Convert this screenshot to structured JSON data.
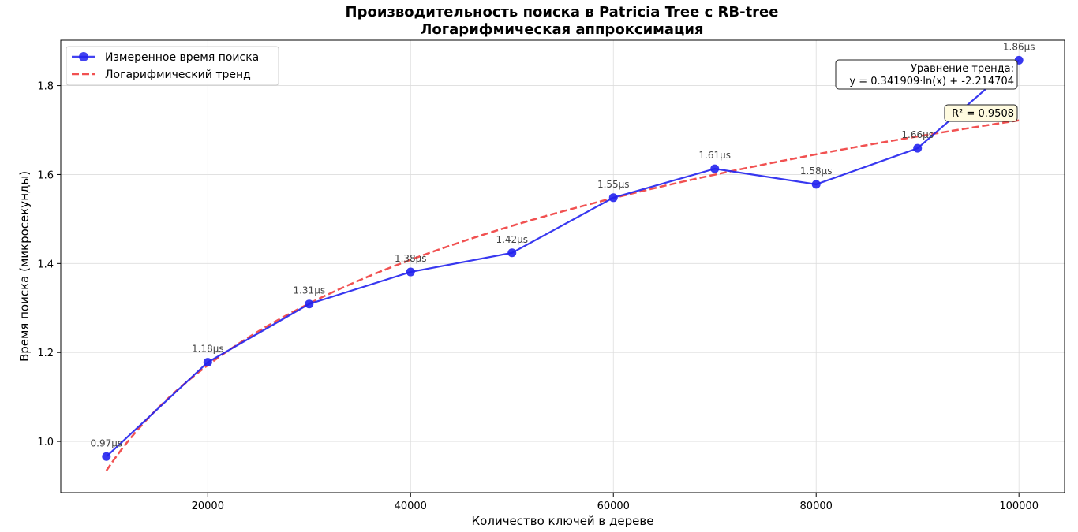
{
  "chart_data": {
    "type": "line",
    "title": "Производительность поиска в Patricia Tree с RB-tree",
    "subtitle": "Логарифмическая аппроксимация",
    "xlabel": "Количество ключей в дереве",
    "ylabel": "Время поиска (микросекунды)",
    "xlim": [
      5500,
      104500
    ],
    "ylim": [
      0.885,
      1.902
    ],
    "xticks": [
      20000,
      40000,
      60000,
      80000,
      100000
    ],
    "yticks": [
      1.0,
      1.2,
      1.4,
      1.6,
      1.8
    ],
    "xtick_labels": [
      "20000",
      "40000",
      "60000",
      "80000",
      "100000"
    ],
    "ytick_labels": [
      "1.0",
      "1.2",
      "1.4",
      "1.6",
      "1.8"
    ],
    "grid": true,
    "legend_position": "top-left",
    "series": [
      {
        "name": "Измеренное время поиска",
        "style": "solid-line-with-markers",
        "color": "#2222ee",
        "x": [
          10000,
          20000,
          30000,
          40000,
          50000,
          60000,
          70000,
          80000,
          90000,
          100000
        ],
        "values": [
          0.966,
          1.178,
          1.309,
          1.381,
          1.424,
          1.548,
          1.613,
          1.578,
          1.659,
          1.857
        ],
        "labels": [
          "0.97μs",
          "1.18μs",
          "1.31μs",
          "1.38μs",
          "1.42μs",
          "1.55μs",
          "1.61μs",
          "1.58μs",
          "1.66μs",
          "1.86μs"
        ]
      },
      {
        "name": "Логарифмический тренд",
        "style": "dashed",
        "color": "#ee3333",
        "coef_a": 0.341909,
        "coef_b": -2.214704,
        "x_range": [
          10000,
          100000
        ]
      }
    ],
    "annotations": {
      "equation_title": "Уравнение тренда:",
      "equation": "y = 0.341909·ln(x) + -2.214704",
      "r2": "R² = 0.9508"
    }
  }
}
